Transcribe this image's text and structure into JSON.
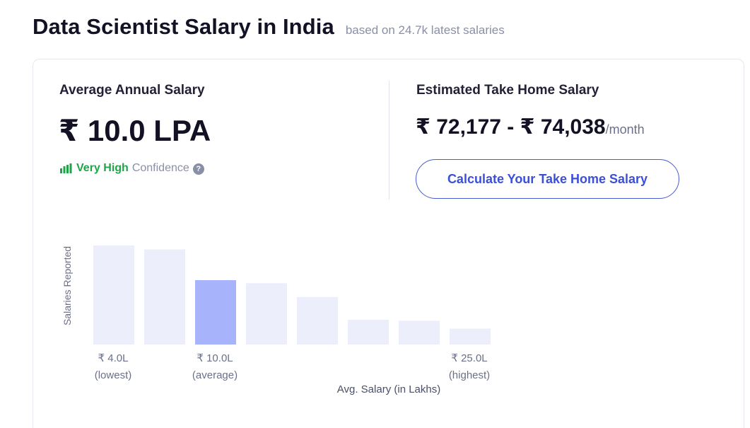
{
  "header": {
    "title": "Data Scientist Salary in India",
    "subtitle": "based on 24.7k latest salaries"
  },
  "average": {
    "label": "Average Annual Salary",
    "value": "₹ 10.0 LPA",
    "confidence_level": "Very High",
    "confidence_word": "Confidence",
    "help_glyph": "?",
    "confidence_icon": "bar-chart-icon",
    "help_icon": "question-circle-icon"
  },
  "take_home": {
    "label": "Estimated Take Home Salary",
    "range": "₹ 72,177 - ₹ 74,038",
    "unit": "/month",
    "button_label": "Calculate Your Take Home Salary"
  },
  "colors": {
    "confidence_green": "#1fa549",
    "accent_blue": "#3b4fd8",
    "bar_light": "#eceefc",
    "bar_highlight": "#a7b3fa"
  },
  "chart_data": {
    "type": "bar",
    "ylabel": "Salaries Reported",
    "xlabel": "Avg. Salary (in Lakhs)",
    "relative_heights": [
      1.0,
      0.96,
      0.65,
      0.62,
      0.48,
      0.25,
      0.24,
      0.16
    ],
    "highlight_index": 2,
    "tick_labels": [
      {
        "index": 0,
        "value": "₹ 4.0L",
        "note": "(lowest)"
      },
      {
        "index": 2,
        "value": "₹ 10.0L",
        "note": "(average)"
      },
      {
        "index": 7,
        "value": "₹ 25.0L",
        "note": "(highest)"
      }
    ]
  }
}
